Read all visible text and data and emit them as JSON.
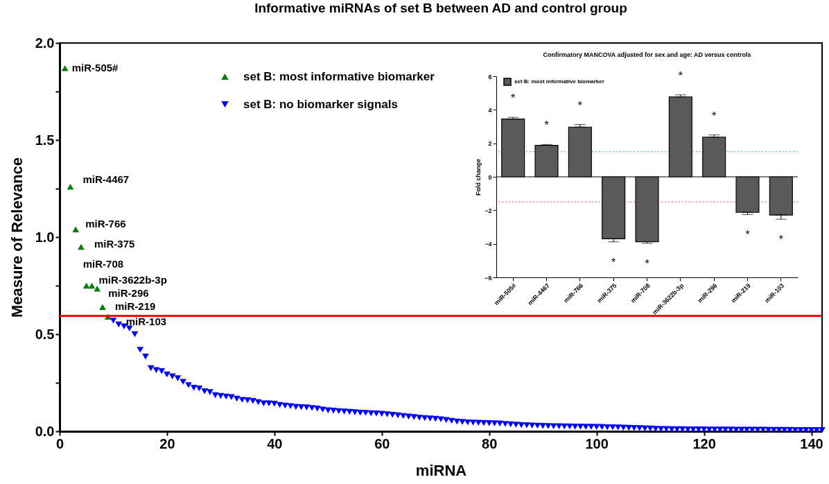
{
  "chart_data": [
    {
      "type": "scatter",
      "title": "Informative miRNAs of set B between AD and control group",
      "xlabel": "miRNA",
      "ylabel": "Measure of Relevance",
      "xlim": [
        0,
        142
      ],
      "xticks": [
        0,
        20,
        40,
        60,
        80,
        100,
        120,
        140
      ],
      "ylim": [
        0,
        2
      ],
      "yticks": [
        {
          "value": 0,
          "label": "0.0"
        },
        {
          "value": 0.25,
          "label": null
        },
        0.5,
        {
          "value": 0.75,
          "label": null
        },
        {
          "value": 1,
          "label": "1.0"
        },
        {
          "value": 1.25,
          "label": null
        },
        1.5,
        {
          "value": 1.75,
          "label": null
        },
        {
          "value": 2,
          "label": "2.0"
        }
      ],
      "grid": false,
      "legend": "top",
      "series": [
        {
          "name": "set B: most informative biomarker",
          "color": "#008000",
          "marker": "triangle",
          "x": [
            1,
            2,
            3,
            4,
            5,
            6,
            7,
            8,
            9
          ],
          "values": [
            1.87,
            1.26,
            1.04,
            0.95,
            0.75,
            0.75,
            0.735,
            0.64,
            0.59
          ]
        },
        {
          "name": "set B: no biomarker signals",
          "color": "#0000ff",
          "marker": "triangle-down",
          "x": [
            10,
            11,
            12,
            13,
            14,
            15,
            16,
            17,
            18,
            19,
            20,
            21,
            22,
            23,
            24,
            25,
            26,
            27,
            28,
            29,
            30,
            31,
            32,
            33,
            34,
            35,
            36,
            37,
            38,
            39,
            40,
            41,
            42,
            43,
            44,
            45,
            46,
            47,
            48,
            49,
            50,
            51,
            52,
            53,
            54,
            55,
            56,
            57,
            58,
            59,
            60,
            61,
            62,
            63,
            64,
            65,
            66,
            67,
            68,
            69,
            70,
            71,
            72,
            73,
            74,
            75,
            76,
            77,
            78,
            79,
            80,
            81,
            82,
            83,
            84,
            85,
            86,
            87,
            88,
            89,
            90,
            91,
            92,
            93,
            94,
            95,
            96,
            97,
            98,
            99,
            100,
            101,
            102,
            103,
            104,
            105,
            106,
            107,
            108,
            109,
            110,
            111,
            112,
            113,
            114,
            115,
            116,
            117,
            118,
            119,
            120,
            121,
            122,
            123,
            124,
            125,
            126,
            127,
            128,
            129,
            130,
            131,
            132,
            133,
            134,
            135,
            136,
            137,
            138,
            139,
            140,
            141,
            142
          ],
          "values": [
            0.57,
            0.55,
            0.54,
            0.53,
            0.5,
            0.42,
            0.385,
            0.325,
            0.315,
            0.31,
            0.293,
            0.283,
            0.273,
            0.255,
            0.238,
            0.224,
            0.221,
            0.206,
            0.202,
            0.186,
            0.182,
            0.179,
            0.176,
            0.168,
            0.162,
            0.16,
            0.156,
            0.15,
            0.144,
            0.144,
            0.142,
            0.136,
            0.132,
            0.13,
            0.126,
            0.124,
            0.123,
            0.12,
            0.117,
            0.112,
            0.108,
            0.106,
            0.104,
            0.102,
            0.1,
            0.098,
            0.096,
            0.095,
            0.093,
            0.092,
            0.09,
            0.088,
            0.085,
            0.082,
            0.079,
            0.076,
            0.073,
            0.07,
            0.068,
            0.066,
            0.064,
            0.062,
            0.058,
            0.054,
            0.05,
            0.048,
            0.046,
            0.045,
            0.044,
            0.043,
            0.042,
            0.041,
            0.04,
            0.038,
            0.036,
            0.034,
            0.032,
            0.031,
            0.03,
            0.029,
            0.028,
            0.027,
            0.026,
            0.026,
            0.025,
            0.025,
            0.024,
            0.024,
            0.023,
            0.023,
            0.022,
            0.022,
            0.021,
            0.021,
            0.02,
            0.019,
            0.018,
            0.017,
            0.016,
            0.015,
            0.014,
            0.013,
            0.012,
            0.012,
            0.011,
            0.011,
            0.011,
            0.01,
            0.01,
            0.01,
            0.01,
            0.009,
            0.009,
            0.009,
            0.009,
            0.009,
            0.008,
            0.008,
            0.008,
            0.008,
            0.008,
            0.008,
            0.007,
            0.007,
            0.007,
            0.007,
            0.007,
            0.006,
            0.006,
            0.006,
            0.006,
            0.006,
            0.006
          ]
        }
      ],
      "ref_lines": [
        {
          "axis": "y",
          "value": 0.595,
          "label": null,
          "color": "#ff0000",
          "line_style": "solid"
        }
      ],
      "annotations": [
        "miR-505#",
        "miR-4467",
        "miR-766",
        "miR-375",
        "miR-708",
        "miR-3622b-3p",
        "miR-296",
        "miR-219",
        "miR-103"
      ]
    },
    {
      "type": "bar",
      "title": "Confirmatory MANCOVA adjusted for sex and age: AD versus controls",
      "ylabel": "Fold change",
      "categories": [
        "miR-505#",
        "miR-4467",
        "miR-766",
        "miR-375",
        "miR-708",
        "miR-3622b-3p",
        "miR-296",
        "miR-219",
        "miR-103"
      ],
      "ylim": [
        -6,
        6
      ],
      "yticks": [
        -6,
        -4,
        -2,
        0,
        2,
        4,
        6
      ],
      "grid": false,
      "legend": "top left",
      "series": [
        {
          "name": "set B: most informative biomarker",
          "color": "#5a5a5a",
          "values": [
            3.45,
            1.88,
            2.97,
            -3.7,
            -3.87,
            4.77,
            2.37,
            -2.12,
            -2.28
          ],
          "errors": [
            [
              3.45,
              3.55
            ],
            [
              1.88,
              1.93
            ],
            [
              2.97,
              3.12
            ],
            [
              -3.88,
              -3.7
            ],
            [
              -3.97,
              -3.87
            ],
            [
              4.77,
              4.89
            ],
            [
              2.37,
              2.5
            ],
            [
              -2.25,
              -2.12
            ],
            [
              -2.53,
              -2.28
            ]
          ]
        }
      ],
      "ref_lines": [
        {
          "axis": "y",
          "value": 1.5,
          "label": null,
          "color": "#2aa876",
          "line_style": "dotted"
        },
        {
          "axis": "y",
          "value": -1.5,
          "label": null,
          "color": "#ff4d4d",
          "line_style": "dotted"
        },
        {
          "axis": "y",
          "value": 0,
          "label": null,
          "color": "#000000",
          "line_style": "solid"
        }
      ],
      "annotations": [
        "*",
        "*",
        "*",
        "*",
        "*",
        "*",
        "*",
        "*",
        "*"
      ]
    }
  ]
}
